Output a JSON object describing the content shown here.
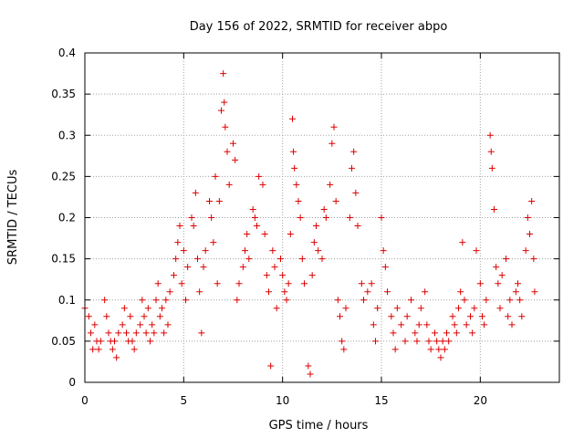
{
  "chart_data": {
    "type": "scatter",
    "title": "Day 156 of 2022, SRMTID for receiver abpo",
    "xlabel": "GPS time / hours",
    "ylabel": "SRMTID / TECUs",
    "xlim": [
      0,
      24
    ],
    "ylim": [
      0,
      0.4
    ],
    "grid": true,
    "marker": "+",
    "marker_color": "#dd0000",
    "xticks": [
      0,
      5,
      10,
      15,
      20
    ],
    "xtick_labels": [
      "0",
      "5",
      "10",
      "15",
      "20"
    ],
    "yticks": [
      0,
      0.05,
      0.1,
      0.15,
      0.2,
      0.25,
      0.3,
      0.35,
      0.4
    ],
    "ytick_labels": [
      "0",
      "0.05",
      "0.1",
      "0.15",
      "0.2",
      "0.25",
      "0.3",
      "0.35",
      "0.4"
    ],
    "series": [
      {
        "name": "SRMTID",
        "points": [
          [
            0.0,
            0.09
          ],
          [
            0.2,
            0.08
          ],
          [
            0.3,
            0.06
          ],
          [
            0.4,
            0.04
          ],
          [
            0.5,
            0.07
          ],
          [
            0.6,
            0.05
          ],
          [
            0.7,
            0.04
          ],
          [
            0.8,
            0.05
          ],
          [
            1.0,
            0.1
          ],
          [
            1.1,
            0.08
          ],
          [
            1.2,
            0.06
          ],
          [
            1.3,
            0.05
          ],
          [
            1.4,
            0.04
          ],
          [
            1.5,
            0.05
          ],
          [
            1.6,
            0.03
          ],
          [
            1.7,
            0.06
          ],
          [
            1.9,
            0.07
          ],
          [
            2.0,
            0.09
          ],
          [
            2.1,
            0.06
          ],
          [
            2.2,
            0.05
          ],
          [
            2.3,
            0.08
          ],
          [
            2.4,
            0.05
          ],
          [
            2.5,
            0.04
          ],
          [
            2.6,
            0.06
          ],
          [
            2.8,
            0.07
          ],
          [
            2.9,
            0.1
          ],
          [
            3.0,
            0.08
          ],
          [
            3.1,
            0.06
          ],
          [
            3.2,
            0.09
          ],
          [
            3.3,
            0.05
          ],
          [
            3.4,
            0.07
          ],
          [
            3.5,
            0.06
          ],
          [
            3.6,
            0.1
          ],
          [
            3.7,
            0.12
          ],
          [
            3.8,
            0.08
          ],
          [
            3.9,
            0.09
          ],
          [
            4.0,
            0.06
          ],
          [
            4.1,
            0.1
          ],
          [
            4.2,
            0.07
          ],
          [
            4.3,
            0.11
          ],
          [
            4.5,
            0.13
          ],
          [
            4.6,
            0.15
          ],
          [
            4.7,
            0.17
          ],
          [
            4.8,
            0.19
          ],
          [
            4.9,
            0.12
          ],
          [
            5.0,
            0.16
          ],
          [
            5.1,
            0.1
          ],
          [
            5.2,
            0.14
          ],
          [
            5.4,
            0.2
          ],
          [
            5.5,
            0.19
          ],
          [
            5.6,
            0.23
          ],
          [
            5.7,
            0.15
          ],
          [
            5.8,
            0.11
          ],
          [
            5.9,
            0.06
          ],
          [
            6.0,
            0.14
          ],
          [
            6.1,
            0.16
          ],
          [
            6.3,
            0.22
          ],
          [
            6.4,
            0.2
          ],
          [
            6.5,
            0.17
          ],
          [
            6.6,
            0.25
          ],
          [
            6.7,
            0.12
          ],
          [
            6.8,
            0.22
          ],
          [
            6.9,
            0.33
          ],
          [
            7.0,
            0.375
          ],
          [
            7.05,
            0.34
          ],
          [
            7.1,
            0.31
          ],
          [
            7.2,
            0.28
          ],
          [
            7.3,
            0.24
          ],
          [
            7.5,
            0.29
          ],
          [
            7.6,
            0.27
          ],
          [
            7.7,
            0.1
          ],
          [
            7.8,
            0.12
          ],
          [
            8.0,
            0.14
          ],
          [
            8.1,
            0.16
          ],
          [
            8.2,
            0.18
          ],
          [
            8.3,
            0.15
          ],
          [
            8.5,
            0.21
          ],
          [
            8.6,
            0.2
          ],
          [
            8.7,
            0.19
          ],
          [
            8.8,
            0.25
          ],
          [
            9.0,
            0.24
          ],
          [
            9.1,
            0.18
          ],
          [
            9.2,
            0.13
          ],
          [
            9.3,
            0.11
          ],
          [
            9.4,
            0.02
          ],
          [
            9.5,
            0.16
          ],
          [
            9.6,
            0.14
          ],
          [
            9.7,
            0.09
          ],
          [
            9.9,
            0.15
          ],
          [
            10.0,
            0.13
          ],
          [
            10.1,
            0.11
          ],
          [
            10.2,
            0.1
          ],
          [
            10.3,
            0.12
          ],
          [
            10.4,
            0.18
          ],
          [
            10.5,
            0.32
          ],
          [
            10.55,
            0.28
          ],
          [
            10.6,
            0.26
          ],
          [
            10.7,
            0.24
          ],
          [
            10.8,
            0.22
          ],
          [
            10.9,
            0.2
          ],
          [
            11.0,
            0.15
          ],
          [
            11.1,
            0.12
          ],
          [
            11.3,
            0.02
          ],
          [
            11.4,
            0.01
          ],
          [
            11.5,
            0.13
          ],
          [
            11.6,
            0.17
          ],
          [
            11.7,
            0.19
          ],
          [
            11.8,
            0.16
          ],
          [
            12.0,
            0.15
          ],
          [
            12.1,
            0.21
          ],
          [
            12.2,
            0.2
          ],
          [
            12.4,
            0.24
          ],
          [
            12.5,
            0.29
          ],
          [
            12.6,
            0.31
          ],
          [
            12.7,
            0.22
          ],
          [
            12.8,
            0.1
          ],
          [
            12.9,
            0.08
          ],
          [
            13.0,
            0.05
          ],
          [
            13.1,
            0.04
          ],
          [
            13.2,
            0.09
          ],
          [
            13.4,
            0.2
          ],
          [
            13.5,
            0.26
          ],
          [
            13.6,
            0.28
          ],
          [
            13.7,
            0.23
          ],
          [
            13.8,
            0.19
          ],
          [
            14.0,
            0.12
          ],
          [
            14.1,
            0.1
          ],
          [
            14.3,
            0.11
          ],
          [
            14.5,
            0.12
          ],
          [
            14.6,
            0.07
          ],
          [
            14.7,
            0.05
          ],
          [
            14.8,
            0.09
          ],
          [
            15.0,
            0.2
          ],
          [
            15.1,
            0.16
          ],
          [
            15.2,
            0.14
          ],
          [
            15.3,
            0.11
          ],
          [
            15.5,
            0.08
          ],
          [
            15.6,
            0.06
          ],
          [
            15.7,
            0.04
          ],
          [
            15.8,
            0.09
          ],
          [
            16.0,
            0.07
          ],
          [
            16.2,
            0.05
          ],
          [
            16.3,
            0.08
          ],
          [
            16.5,
            0.1
          ],
          [
            16.7,
            0.06
          ],
          [
            16.8,
            0.05
          ],
          [
            16.9,
            0.07
          ],
          [
            17.0,
            0.09
          ],
          [
            17.2,
            0.11
          ],
          [
            17.3,
            0.07
          ],
          [
            17.4,
            0.05
          ],
          [
            17.5,
            0.04
          ],
          [
            17.7,
            0.06
          ],
          [
            17.8,
            0.05
          ],
          [
            17.9,
            0.04
          ],
          [
            18.0,
            0.03
          ],
          [
            18.1,
            0.05
          ],
          [
            18.2,
            0.04
          ],
          [
            18.3,
            0.06
          ],
          [
            18.4,
            0.05
          ],
          [
            18.6,
            0.08
          ],
          [
            18.7,
            0.07
          ],
          [
            18.8,
            0.06
          ],
          [
            18.9,
            0.09
          ],
          [
            19.0,
            0.11
          ],
          [
            19.1,
            0.17
          ],
          [
            19.2,
            0.1
          ],
          [
            19.3,
            0.07
          ],
          [
            19.5,
            0.08
          ],
          [
            19.6,
            0.06
          ],
          [
            19.7,
            0.09
          ],
          [
            19.8,
            0.16
          ],
          [
            20.0,
            0.12
          ],
          [
            20.1,
            0.08
          ],
          [
            20.2,
            0.07
          ],
          [
            20.3,
            0.1
          ],
          [
            20.5,
            0.3
          ],
          [
            20.55,
            0.28
          ],
          [
            20.6,
            0.26
          ],
          [
            20.7,
            0.21
          ],
          [
            20.8,
            0.14
          ],
          [
            20.9,
            0.12
          ],
          [
            21.0,
            0.09
          ],
          [
            21.1,
            0.13
          ],
          [
            21.3,
            0.15
          ],
          [
            21.4,
            0.08
          ],
          [
            21.5,
            0.1
          ],
          [
            21.6,
            0.07
          ],
          [
            21.8,
            0.11
          ],
          [
            21.9,
            0.12
          ],
          [
            22.0,
            0.1
          ],
          [
            22.1,
            0.08
          ],
          [
            22.3,
            0.16
          ],
          [
            22.4,
            0.2
          ],
          [
            22.5,
            0.18
          ],
          [
            22.6,
            0.22
          ],
          [
            22.7,
            0.15
          ],
          [
            22.75,
            0.11
          ]
        ]
      }
    ]
  }
}
